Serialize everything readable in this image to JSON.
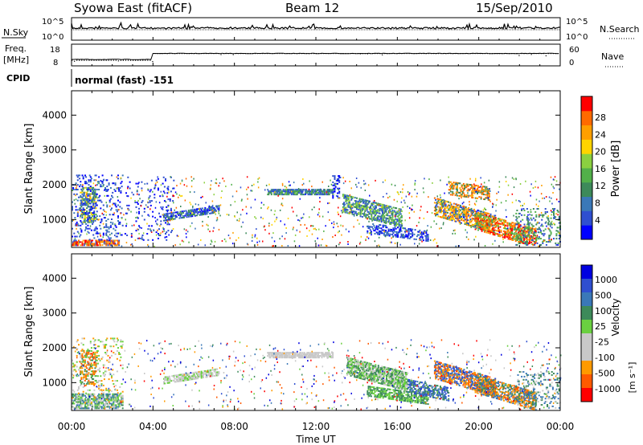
{
  "header": {
    "station": "Syowa East (fitACF)",
    "beam": "Beam 12",
    "date": "15/Sep/2010"
  },
  "noise_panel": {
    "left_label": "N.Sky",
    "right_label": "N.Search",
    "left_ticks": [
      "10^5",
      "10^0"
    ],
    "right_ticks": [
      "10^5",
      "10^0"
    ]
  },
  "freq_panel": {
    "left_label_1": "Freq.",
    "left_label_2": "[MHz]",
    "right_label": "Nave",
    "left_ticks": [
      "18",
      "8"
    ],
    "right_ticks": [
      "60",
      "0"
    ],
    "cpid_label": "CPID",
    "cpid_text": "normal (fast) -151"
  },
  "colors": {
    "power": [
      "#0000ff",
      "#2f4fd0",
      "#3a78b8",
      "#3d8a5a",
      "#52b04a",
      "#8bd040",
      "#ffd400",
      "#ff9f00",
      "#ff6a00",
      "#ff0000"
    ],
    "velocity": [
      "#ff0000",
      "#ff5a00",
      "#ff9a00",
      "#c8c8c8",
      "#c8c8c8",
      "#6ad040",
      "#3d8a5a",
      "#3a78b8",
      "#2f4fd0",
      "#0000e0"
    ]
  },
  "chart_data": [
    {
      "type": "heatmap",
      "quantity": "Power",
      "ylabel": "Slant Range [km]",
      "xlabel": "",
      "xlim_hours": [
        0,
        24
      ],
      "ylim_km": [
        200,
        4700
      ],
      "yticks": [
        "1000",
        "2000",
        "3000",
        "4000"
      ],
      "xticks": [
        "00:00",
        "04:00",
        "08:00",
        "12:00",
        "16:00",
        "20:00",
        "00:00"
      ],
      "colorbar": {
        "title": "Power [dB]",
        "ticks": [
          "28",
          "24",
          "20",
          "16",
          "12",
          "8",
          "4"
        ]
      }
    },
    {
      "type": "heatmap",
      "quantity": "Velocity",
      "ylabel": "Slant Range [km]",
      "xlabel": "Time UT",
      "xlim_hours": [
        0,
        24
      ],
      "ylim_km": [
        200,
        4700
      ],
      "yticks": [
        "1000",
        "2000",
        "3000",
        "4000"
      ],
      "xticks": [
        "00:00",
        "04:00",
        "08:00",
        "12:00",
        "16:00",
        "20:00",
        "00:00"
      ],
      "colorbar": {
        "title": "Velocity",
        "unit": "[m s⁻¹]",
        "ticks": [
          "1000",
          "500",
          "100",
          "25",
          "-25",
          "-100",
          "-500",
          "-1000"
        ]
      }
    }
  ]
}
